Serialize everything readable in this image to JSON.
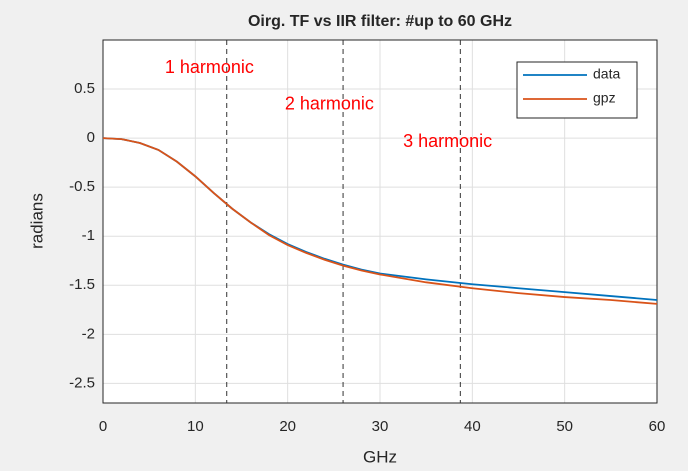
{
  "chart_data": {
    "type": "line",
    "title": "Oirg. TF vs IIR filter: #up to 60 GHz",
    "x_label": "GHz",
    "y_label": "radians",
    "x": [
      0,
      2,
      4,
      6,
      8,
      10,
      12,
      14,
      16,
      18,
      20,
      22,
      24,
      26,
      28,
      30,
      35,
      40,
      45,
      50,
      55,
      60
    ],
    "series": [
      {
        "name": "data",
        "color": "#0072bd",
        "values": [
          0,
          -0.01,
          -0.05,
          -0.12,
          -0.24,
          -0.39,
          -0.56,
          -0.72,
          -0.86,
          -0.98,
          -1.08,
          -1.16,
          -1.23,
          -1.29,
          -1.34,
          -1.38,
          -1.44,
          -1.49,
          -1.53,
          -1.57,
          -1.61,
          -1.65
        ]
      },
      {
        "name": "gpz",
        "color": "#d95319",
        "values": [
          0,
          -0.01,
          -0.05,
          -0.12,
          -0.24,
          -0.39,
          -0.56,
          -0.72,
          -0.86,
          -0.99,
          -1.09,
          -1.17,
          -1.24,
          -1.3,
          -1.35,
          -1.39,
          -1.47,
          -1.53,
          -1.58,
          -1.62,
          -1.65,
          -1.69
        ]
      }
    ],
    "xlim": [
      0,
      60
    ],
    "xticks": [
      0,
      10,
      20,
      30,
      40,
      50,
      60
    ],
    "ylim": [
      -2.7,
      1
    ],
    "yticks": [
      0.5,
      0,
      -0.5,
      -1,
      -1.5,
      -2,
      -2.5
    ],
    "grid": true,
    "legend": "northeast",
    "vlines": [
      13.4,
      26,
      38.7
    ],
    "annotations": [
      {
        "text": "1 harmonic",
        "x": 6.7,
        "y": 0.71,
        "color": "#ff0000"
      },
      {
        "text": "2 harmonic",
        "x": 19.7,
        "y": 0.34,
        "color": "#ff0000"
      },
      {
        "text": "3 harmonic",
        "x": 32.5,
        "y": -0.04,
        "color": "#ff0000"
      }
    ]
  }
}
